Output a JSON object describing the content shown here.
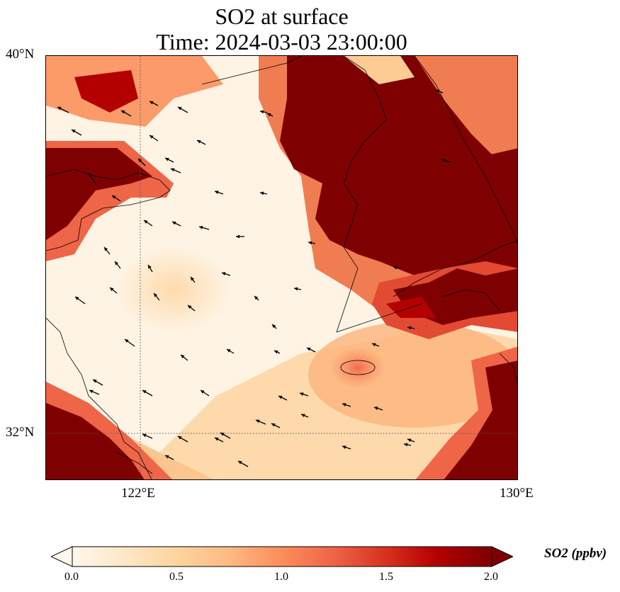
{
  "title": {
    "line1": "SO2 at surface",
    "line2": "Time: 2024-03-03 23:00:00"
  },
  "map": {
    "projection": "plate carree",
    "extent": {
      "lon_min": 119.3,
      "lon_max": 130.0,
      "lat_min": 31.0,
      "lat_max": 40.0
    },
    "lat_ticks": [
      {
        "value": 40,
        "label": "40°N"
      },
      {
        "value": 32,
        "label": "32°N"
      }
    ],
    "lon_ticks": [
      {
        "value": 122,
        "label": "122°E"
      },
      {
        "value": 130,
        "label": "130°E"
      }
    ],
    "gridlines": {
      "style": "dotted",
      "lon": [
        122
      ],
      "lat": [
        32
      ]
    },
    "field": {
      "name": "SO2",
      "unit": "ppbv",
      "colormap": "OrRd",
      "high_regions": [
        "northeast of map",
        "western edge near 37°N",
        "southwest corner",
        "southeast corner",
        "east-central band"
      ],
      "low_regions": [
        "central and western sea area"
      ]
    },
    "wind_vectors": "black arrows, mostly pointing west-northwest"
  },
  "colorbar": {
    "label": "SO2 (ppbv)",
    "min": 0.0,
    "max": 2.0,
    "ticks": [
      "0.0",
      "0.5",
      "1.0",
      "1.5",
      "2.0"
    ],
    "extend": "both",
    "orientation": "horizontal",
    "colors": [
      "#fff7ec",
      "#fee8c8",
      "#fdd49e",
      "#fdbb84",
      "#fc8d59",
      "#ef6548",
      "#d7301f",
      "#b30000",
      "#7f0000"
    ]
  }
}
